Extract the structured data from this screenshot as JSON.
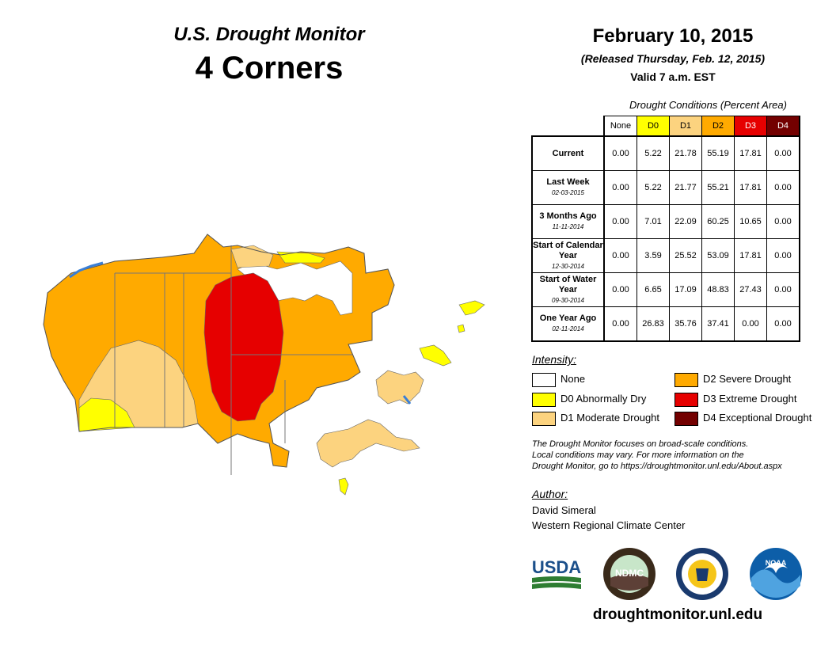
{
  "header": {
    "title": "U.S. Drought Monitor",
    "region": "4 Corners",
    "date": "February 10, 2015",
    "released": "(Released Thursday, Feb. 12, 2015)",
    "valid": "Valid 7 a.m. EST"
  },
  "table": {
    "caption": "Drought Conditions (Percent Area)",
    "columns": [
      "None",
      "D0",
      "D1",
      "D2",
      "D3",
      "D4"
    ],
    "rows": [
      {
        "label": "Current",
        "date": "",
        "values": [
          "0.00",
          "5.22",
          "21.78",
          "55.19",
          "17.81",
          "0.00"
        ]
      },
      {
        "label": "Last Week",
        "date": "02-03-2015",
        "values": [
          "0.00",
          "5.22",
          "21.77",
          "55.21",
          "17.81",
          "0.00"
        ]
      },
      {
        "label": "3 Months Ago",
        "date": "11-11-2014",
        "values": [
          "0.00",
          "7.01",
          "22.09",
          "60.25",
          "10.65",
          "0.00"
        ]
      },
      {
        "label": "Start of Calendar Year",
        "date": "12-30-2014",
        "values": [
          "0.00",
          "3.59",
          "25.52",
          "53.09",
          "17.81",
          "0.00"
        ]
      },
      {
        "label": "Start of Water Year",
        "date": "09-30-2014",
        "values": [
          "0.00",
          "6.65",
          "17.09",
          "48.83",
          "27.43",
          "0.00"
        ]
      },
      {
        "label": "One Year Ago",
        "date": "02-11-2014",
        "values": [
          "0.00",
          "26.83",
          "35.76",
          "37.41",
          "0.00",
          "0.00"
        ]
      }
    ]
  },
  "legend": {
    "title": "Intensity:",
    "items": [
      {
        "label": "None",
        "color": "#ffffff"
      },
      {
        "label": "D0 Abnormally Dry",
        "color": "#ffff00"
      },
      {
        "label": "D1 Moderate Drought",
        "color": "#fcd37f"
      },
      {
        "label": "D2 Severe Drought",
        "color": "#ffaa00"
      },
      {
        "label": "D3 Extreme Drought",
        "color": "#e60000"
      },
      {
        "label": "D4 Exceptional Drought",
        "color": "#730000"
      }
    ]
  },
  "note": {
    "line1": "The Drought Monitor focuses on broad-scale conditions.",
    "line2": "Local conditions may vary. For more information on the",
    "line3": "Drought Monitor, go to https://droughtmonitor.unl.edu/About.aspx"
  },
  "author": {
    "label": "Author:",
    "name": "David Simeral",
    "org": "Western Regional Climate Center"
  },
  "logos": {
    "usda": "USDA",
    "ndmc": "NDMC",
    "noaa": "NOAA"
  },
  "website": "droughtmonitor.unl.edu",
  "colors": {
    "d0": "#ffff00",
    "d1": "#fcd37f",
    "d2": "#ffaa00",
    "d3": "#e60000",
    "d4": "#730000",
    "water": "#3a7fd6"
  }
}
